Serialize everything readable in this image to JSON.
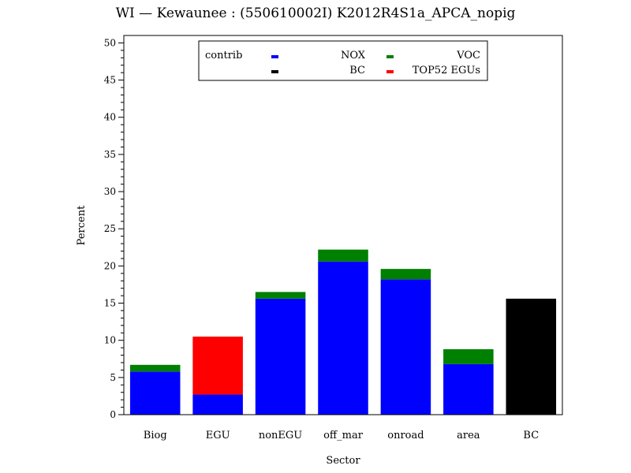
{
  "chart_data": {
    "type": "bar",
    "stacked": true,
    "title": "WI — Kewaunee : (550610002I) K2012R4S1a_APCA_nopig",
    "xlabel": "Sector",
    "ylabel": "Percent",
    "ylim": [
      0,
      51
    ],
    "yticks": [
      0,
      5,
      10,
      15,
      20,
      25,
      30,
      35,
      40,
      45,
      50
    ],
    "yticklabels": [
      "0",
      "5",
      "10",
      "15",
      "20",
      "25",
      "30",
      "35",
      "40",
      "45",
      "50"
    ],
    "categories": [
      "Biog",
      "EGU",
      "nonEGU",
      "off_mar",
      "onroad",
      "area",
      "BC"
    ],
    "legend_title": "contrib",
    "legend_position": "top-center",
    "series": [
      {
        "name": "NOX",
        "color": "#0000ff",
        "values": [
          5.8,
          2.7,
          15.6,
          20.6,
          18.2,
          6.8,
          0
        ]
      },
      {
        "name": "VOC",
        "color": "#008000",
        "values": [
          0.9,
          0,
          0.9,
          1.6,
          1.4,
          2.0,
          0
        ]
      },
      {
        "name": "BC",
        "color": "#000000",
        "values": [
          0,
          0,
          0,
          0,
          0,
          0,
          15.6
        ]
      },
      {
        "name": "TOP52 EGUs",
        "color": "#ff0000",
        "values": [
          0,
          7.8,
          0,
          0,
          0,
          0,
          0
        ]
      }
    ]
  }
}
